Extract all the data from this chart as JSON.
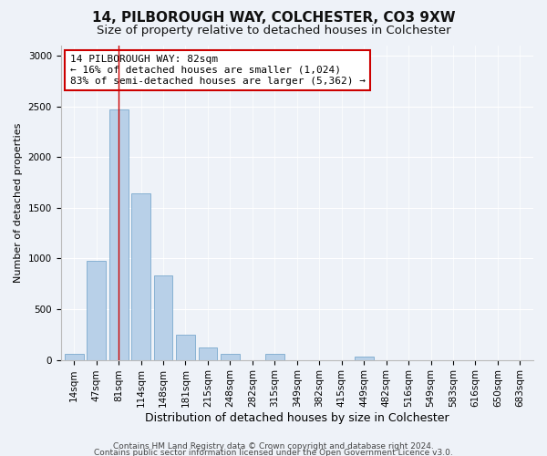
{
  "title1": "14, PILBOROUGH WAY, COLCHESTER, CO3 9XW",
  "title2": "Size of property relative to detached houses in Colchester",
  "xlabel": "Distribution of detached houses by size in Colchester",
  "ylabel": "Number of detached properties",
  "categories": [
    "14sqm",
    "47sqm",
    "81sqm",
    "114sqm",
    "148sqm",
    "181sqm",
    "215sqm",
    "248sqm",
    "282sqm",
    "315sqm",
    "349sqm",
    "382sqm",
    "415sqm",
    "449sqm",
    "482sqm",
    "516sqm",
    "549sqm",
    "583sqm",
    "616sqm",
    "650sqm",
    "683sqm"
  ],
  "values": [
    55,
    980,
    2470,
    1640,
    830,
    250,
    125,
    55,
    0,
    55,
    0,
    0,
    0,
    35,
    0,
    0,
    0,
    0,
    0,
    0,
    0
  ],
  "bar_color": "#b8d0e8",
  "bar_edge_color": "#6a9fc8",
  "highlight_index": 2,
  "annotation_text": "14 PILBOROUGH WAY: 82sqm\n← 16% of detached houses are smaller (1,024)\n83% of semi-detached houses are larger (5,362) →",
  "annotation_box_color": "#ffffff",
  "annotation_box_edge": "#cc0000",
  "ylim": [
    0,
    3100
  ],
  "yticks": [
    0,
    500,
    1000,
    1500,
    2000,
    2500,
    3000
  ],
  "bg_color": "#eef2f8",
  "plot_bg_color": "#eef2f8",
  "footer1": "Contains HM Land Registry data © Crown copyright and database right 2024.",
  "footer2": "Contains public sector information licensed under the Open Government Licence v3.0.",
  "title1_fontsize": 11,
  "title2_fontsize": 9.5,
  "xlabel_fontsize": 9,
  "ylabel_fontsize": 8,
  "tick_fontsize": 7.5,
  "annotation_fontsize": 8,
  "footer_fontsize": 6.5
}
